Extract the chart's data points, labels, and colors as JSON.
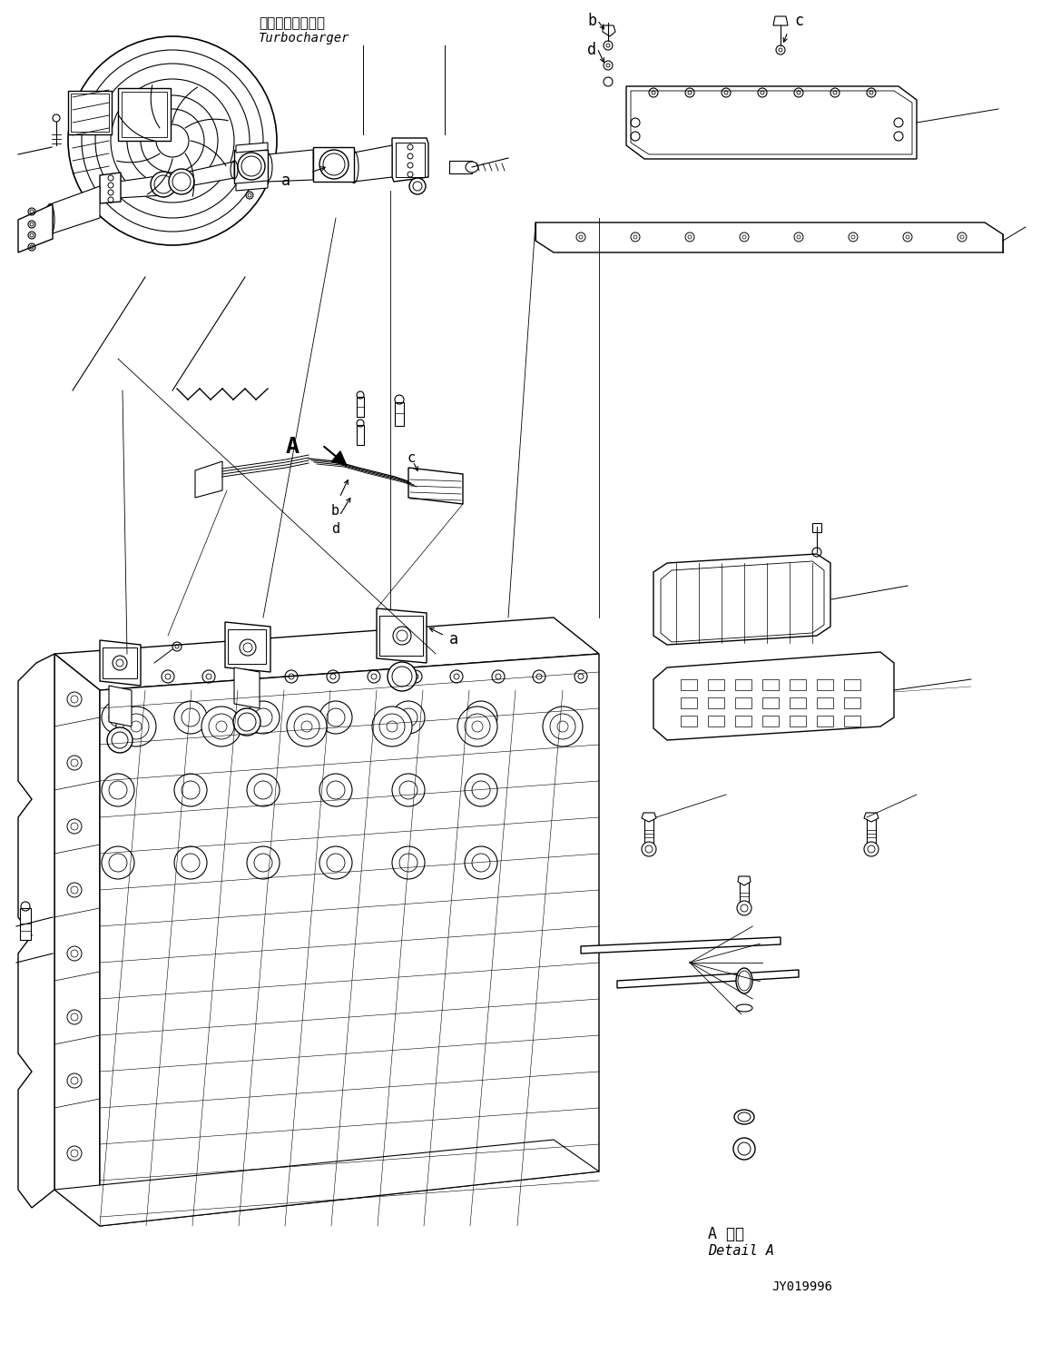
{
  "background_color": "#ffffff",
  "fig_width": 11.47,
  "fig_height": 14.91,
  "dpi": 100,
  "line_color": "#000000",
  "text_color": "#000000",
  "labels": {
    "turbocharger_jp": "ターボチャージャ",
    "turbocharger_en": "Turbocharger",
    "detail_jp": "A 詳細",
    "detail_en": "Detail A",
    "part_number": "JY019996"
  }
}
